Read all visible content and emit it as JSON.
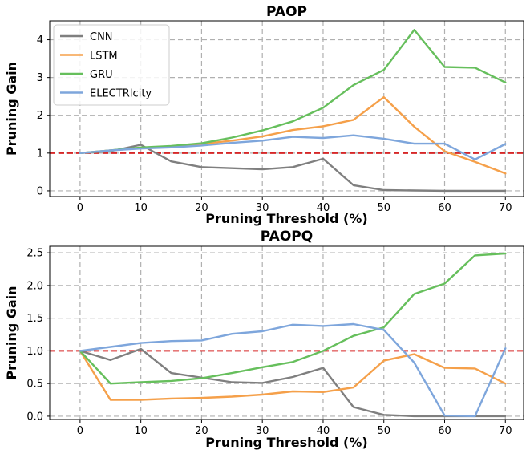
{
  "chart_data": [
    {
      "type": "line",
      "title": "PAOP",
      "xlabel": "Pruning Threshold (%)",
      "ylabel": "Pruning Gain",
      "xlim": [
        -5,
        73
      ],
      "ylim": [
        -0.15,
        4.5
      ],
      "xticks": [
        0,
        10,
        20,
        30,
        40,
        50,
        60,
        70
      ],
      "yticks": [
        0,
        1,
        2,
        3,
        4
      ],
      "grid": true,
      "legend": "top-left",
      "reference_line": {
        "y": 1.0,
        "color": "#d62728",
        "style": "dashed"
      },
      "x": [
        0,
        5,
        10,
        15,
        20,
        25,
        30,
        35,
        40,
        45,
        50,
        55,
        60,
        65,
        70
      ],
      "series": [
        {
          "name": "CNN",
          "color": "#7f7f7f",
          "values": [
            1.0,
            1.05,
            1.22,
            0.78,
            0.63,
            0.6,
            0.57,
            0.63,
            0.85,
            0.15,
            0.02,
            0.01,
            0.0,
            0.0,
            0.0
          ]
        },
        {
          "name": "LSTM",
          "color": "#f5a04a",
          "values": [
            1.0,
            1.07,
            1.13,
            1.18,
            1.24,
            1.33,
            1.44,
            1.61,
            1.71,
            1.88,
            2.48,
            1.7,
            1.05,
            0.77,
            0.46
          ]
        },
        {
          "name": "GRU",
          "color": "#66bf5c",
          "values": [
            1.0,
            1.07,
            1.15,
            1.19,
            1.26,
            1.41,
            1.6,
            1.84,
            2.2,
            2.8,
            3.2,
            4.26,
            3.28,
            3.26,
            2.87
          ]
        },
        {
          "name": "ELECTRIcity",
          "color": "#7ea6dc",
          "values": [
            1.0,
            1.07,
            1.12,
            1.15,
            1.2,
            1.27,
            1.33,
            1.43,
            1.4,
            1.47,
            1.38,
            1.25,
            1.25,
            0.83,
            1.24
          ]
        }
      ]
    },
    {
      "type": "line",
      "title": "PAOPQ",
      "xlabel": "Pruning Threshold (%)",
      "ylabel": "Pruning Gain",
      "xlim": [
        -5,
        73
      ],
      "ylim": [
        -0.05,
        2.6
      ],
      "xticks": [
        0,
        10,
        20,
        30,
        40,
        50,
        60,
        70
      ],
      "yticks": [
        0.0,
        0.5,
        1.0,
        1.5,
        2.0,
        2.5
      ],
      "grid": true,
      "reference_line": {
        "y": 1.0,
        "color": "#d62728",
        "style": "dashed"
      },
      "x": [
        0,
        5,
        10,
        15,
        20,
        25,
        30,
        35,
        40,
        45,
        50,
        55,
        60,
        65,
        70
      ],
      "series": [
        {
          "name": "CNN",
          "color": "#7f7f7f",
          "values": [
            1.0,
            0.86,
            1.03,
            0.66,
            0.59,
            0.52,
            0.51,
            0.6,
            0.74,
            0.14,
            0.02,
            0.0,
            0.0,
            0.0,
            0.0
          ]
        },
        {
          "name": "LSTM",
          "color": "#f5a04a",
          "values": [
            1.0,
            0.25,
            0.25,
            0.27,
            0.28,
            0.3,
            0.33,
            0.38,
            0.37,
            0.44,
            0.85,
            0.95,
            0.74,
            0.73,
            0.5
          ]
        },
        {
          "name": "GRU",
          "color": "#66bf5c",
          "values": [
            1.0,
            0.5,
            0.52,
            0.54,
            0.58,
            0.66,
            0.75,
            0.83,
            1.0,
            1.23,
            1.36,
            1.87,
            2.03,
            2.46,
            2.49
          ]
        },
        {
          "name": "ELECTRIcity",
          "color": "#7ea6dc",
          "values": [
            1.0,
            1.06,
            1.12,
            1.15,
            1.16,
            1.26,
            1.3,
            1.4,
            1.38,
            1.41,
            1.32,
            0.82,
            0.01,
            0.0,
            1.04
          ]
        }
      ]
    }
  ]
}
